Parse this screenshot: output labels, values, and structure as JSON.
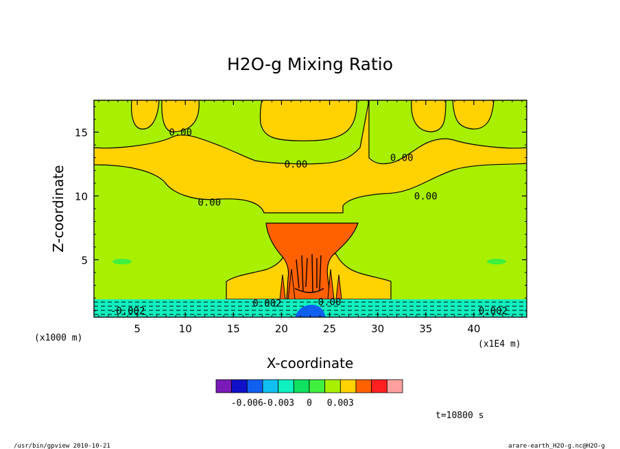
{
  "chart_data": {
    "type": "heatmap",
    "title": "H2O-g Mixing Ratio",
    "xlabel": "X-coordinate",
    "ylabel": "Z-coordinate",
    "x_unit_label": "(x1E4 m)",
    "y_unit_label": "(x1000 m)",
    "xlim": [
      0.5,
      45.5
    ],
    "ylim": [
      0.5,
      17.5
    ],
    "x_ticks": [
      5,
      10,
      15,
      20,
      25,
      30,
      35,
      40
    ],
    "y_ticks": [
      5,
      10,
      15
    ],
    "contour_labels": [
      {
        "text": "0.00",
        "x": 9.5,
        "y": 15.0
      },
      {
        "text": "0.00",
        "x": 21.5,
        "y": 12.5
      },
      {
        "text": "0.00",
        "x": 32.5,
        "y": 13.0
      },
      {
        "text": "0.00",
        "x": 12.5,
        "y": 9.5
      },
      {
        "text": "0.00",
        "x": 35.0,
        "y": 10.0
      },
      {
        "text": "-0.002",
        "x": 4.0,
        "y": 1.0
      },
      {
        "text": "0.002",
        "x": 18.5,
        "y": 1.6
      },
      {
        "text": "0.00",
        "x": 25.0,
        "y": 1.7
      },
      {
        "text": "0.002",
        "x": 42.0,
        "y": 1.0
      }
    ],
    "colorbar": {
      "colors": [
        "#7a1ab8",
        "#1010c8",
        "#1060f0",
        "#10c0f0",
        "#10f0c0",
        "#10e060",
        "#40f040",
        "#a8f000",
        "#ffd200",
        "#ff6000",
        "#ff2020",
        "#ffa0a0"
      ],
      "tick_labels": [
        "-0.006",
        "-0.003",
        "0",
        "0.003"
      ]
    },
    "time_label": "t=10800  s"
  },
  "footer": {
    "left": "/usr/bin/gpview   2010-10-21",
    "right": "arare-earth_H2O-g.nc@H2O-g"
  }
}
